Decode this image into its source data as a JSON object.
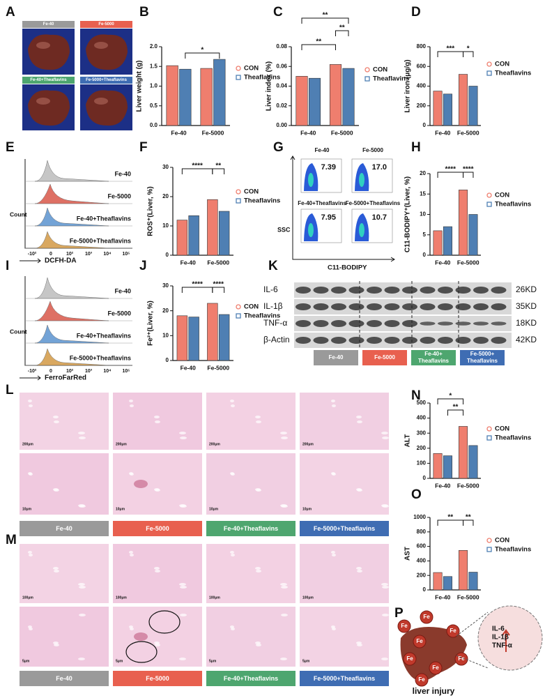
{
  "panel_labels": [
    "A",
    "B",
    "C",
    "D",
    "E",
    "F",
    "G",
    "H",
    "I",
    "J",
    "K",
    "L",
    "M",
    "N",
    "O",
    "P"
  ],
  "photos": {
    "groups": [
      "Fe-40",
      "Fe-5000",
      "Fe-40+Theaflavins",
      "Fe-5000+Theaflavins"
    ]
  },
  "chart_data": [
    {
      "type": "bar",
      "ylabel": "Liver weight (g)",
      "categories": [
        "Fe-40",
        "Fe-5000"
      ],
      "series": [
        {
          "name": "CON",
          "color": "#ef7e6e",
          "values": [
            1.52,
            1.45
          ]
        },
        {
          "name": "Theaflavins",
          "color": "#4f7fb3",
          "values": [
            1.43,
            1.68
          ]
        }
      ],
      "ylim": [
        0,
        2
      ],
      "yticks": [
        {
          "value": 0,
          "label": "0.0"
        },
        0.5,
        {
          "value": 1,
          "label": "1.0"
        },
        1.5,
        {
          "value": 2,
          "label": "2.0"
        }
      ],
      "annotations": [
        "*"
      ]
    },
    {
      "type": "bar",
      "ylabel": "Liver index (%)",
      "categories": [
        "Fe-40",
        "Fe-5000"
      ],
      "series": [
        {
          "name": "CON",
          "color": "#ef7e6e",
          "values": [
            0.05,
            0.062
          ]
        },
        {
          "name": "Theaflavins",
          "color": "#4f7fb3",
          "values": [
            0.048,
            0.058
          ]
        }
      ],
      "ylim": [
        0,
        0.08
      ],
      "yticks": [
        {
          "value": 0,
          "label": "0.00"
        },
        {
          "value": 0.02,
          "label": "0.02"
        },
        {
          "value": 0.04,
          "label": "0.04"
        },
        {
          "value": 0.06,
          "label": "0.06"
        },
        {
          "value": 0.08,
          "label": "0.08"
        }
      ],
      "annotations": [
        "**",
        "**",
        "**"
      ]
    },
    {
      "type": "bar",
      "ylabel": "Liver iron (μg/g)",
      "categories": [
        "Fe-40",
        "Fe-5000"
      ],
      "series": [
        {
          "name": "CON",
          "color": "#ef7e6e",
          "values": [
            350,
            520
          ]
        },
        {
          "name": "Theaflavins",
          "color": "#4f7fb3",
          "values": [
            320,
            400
          ]
        }
      ],
      "ylim": [
        0,
        800
      ],
      "yticks": [
        0,
        200,
        400,
        600,
        800
      ],
      "annotations": [
        "***",
        "*"
      ]
    },
    {
      "type": "bar",
      "ylabel": "ROS⁺(Liver, %)",
      "categories": [
        "Fe-40",
        "Fe-5000"
      ],
      "series": [
        {
          "name": "CON",
          "color": "#ef7e6e",
          "values": [
            12,
            19
          ]
        },
        {
          "name": "Theaflavins",
          "color": "#4f7fb3",
          "values": [
            13.5,
            15
          ]
        }
      ],
      "ylim": [
        0,
        30
      ],
      "yticks": [
        0,
        10,
        20,
        30
      ],
      "annotations": [
        "****",
        "**"
      ]
    },
    {
      "type": "bar",
      "ylabel": "C11-BODIPY⁺(Liver, %)",
      "categories": [
        "Fe-40",
        "Fe-5000"
      ],
      "series": [
        {
          "name": "CON",
          "color": "#ef7e6e",
          "values": [
            6,
            16
          ]
        },
        {
          "name": "Theaflavins",
          "color": "#4f7fb3",
          "values": [
            7,
            10
          ]
        }
      ],
      "ylim": [
        0,
        20
      ],
      "yticks": [
        0,
        5,
        10,
        15,
        20
      ],
      "annotations": [
        "****",
        "****"
      ]
    },
    {
      "type": "bar",
      "ylabel": "Fe²⁺(Liver, %)",
      "categories": [
        "Fe-40",
        "Fe-5000"
      ],
      "series": [
        {
          "name": "CON",
          "color": "#ef7e6e",
          "values": [
            18,
            23
          ]
        },
        {
          "name": "Theaflavins",
          "color": "#4f7fb3",
          "values": [
            17.5,
            18.5
          ]
        }
      ],
      "ylim": [
        0,
        30
      ],
      "yticks": [
        0,
        10,
        20,
        30
      ],
      "annotations": [
        "****",
        "****"
      ]
    },
    {
      "type": "bar",
      "ylabel": "ALT",
      "categories": [
        "Fe-40",
        "Fe-5000"
      ],
      "series": [
        {
          "name": "CON",
          "color": "#ef7e6e",
          "values": [
            165,
            345
          ]
        },
        {
          "name": "Theaflavins",
          "color": "#4f7fb3",
          "values": [
            150,
            218
          ]
        }
      ],
      "ylim": [
        0,
        500
      ],
      "yticks": [
        0,
        100,
        200,
        300,
        400,
        500
      ],
      "annotations": [
        "*",
        "**"
      ]
    },
    {
      "type": "bar",
      "ylabel": "AST",
      "categories": [
        "Fe-40",
        "Fe-5000"
      ],
      "series": [
        {
          "name": "CON",
          "color": "#ef7e6e",
          "values": [
            240,
            545
          ]
        },
        {
          "name": "Theaflavins",
          "color": "#4f7fb3",
          "values": [
            185,
            245
          ]
        }
      ],
      "ylim": [
        0,
        1000
      ],
      "yticks": [
        0,
        200,
        400,
        600,
        800,
        1000
      ],
      "annotations": [
        "**",
        "**"
      ]
    }
  ],
  "histograms": [
    {
      "ylabel": "Count",
      "xlabel": "DCFH-DA",
      "xticks": [
        "-10²",
        "0",
        "10²",
        "10³",
        "10⁴",
        "10⁵"
      ],
      "groups": [
        "Fe-40",
        "Fe-5000",
        "Fe-40+Theaflavins",
        "Fe-5000+Theaflavins"
      ]
    },
    {
      "ylabel": "Count",
      "xlabel": "FerroFarRed",
      "xticks": [
        "-10²",
        "0",
        "10²",
        "10³",
        "10⁴",
        "10⁵"
      ],
      "groups": [
        "Fe-40",
        "Fe-5000",
        "Fe-40+Theaflavins",
        "Fe-5000+Theaflavins"
      ]
    }
  ],
  "flow": {
    "ylabel": "SSC",
    "xlabel": "C11-BODIPY",
    "plots": [
      {
        "name": "Fe-40",
        "value": "7.39"
      },
      {
        "name": "Fe-5000",
        "value": "17.0"
      },
      {
        "name": "Fe-40+Theaflavins",
        "value": "7.95"
      },
      {
        "name": "Fe-5000+Theaflavins",
        "value": "10.7"
      }
    ]
  },
  "blot": {
    "proteins": [
      "IL-6",
      "IL-1β",
      "TNF-α",
      "β-Actin"
    ],
    "sizes": [
      "26KD",
      "35KD",
      "18KD",
      "42KD"
    ],
    "groups": [
      "Fe-40",
      "Fe-5000",
      "Fe-40+ Theaflavins",
      "Fe-5000+ Theaflavins"
    ]
  },
  "histology_L": {
    "scales": [
      "200μm",
      "10μm"
    ],
    "groups": [
      "Fe-40",
      "Fe-5000",
      "Fe-40+Theaflavins",
      "Fe-5000+Theaflavins"
    ]
  },
  "histology_M": {
    "scales": [
      "100μm",
      "5μm"
    ],
    "groups": [
      "Fe-40",
      "Fe-5000",
      "Fe-40+Theaflavins",
      "Fe-5000+Theaflavins"
    ]
  },
  "diagram": {
    "ion": "Fe",
    "cytokines": [
      "IL-6",
      "IL-1β",
      "TNF-α"
    ],
    "caption": "liver injury"
  }
}
